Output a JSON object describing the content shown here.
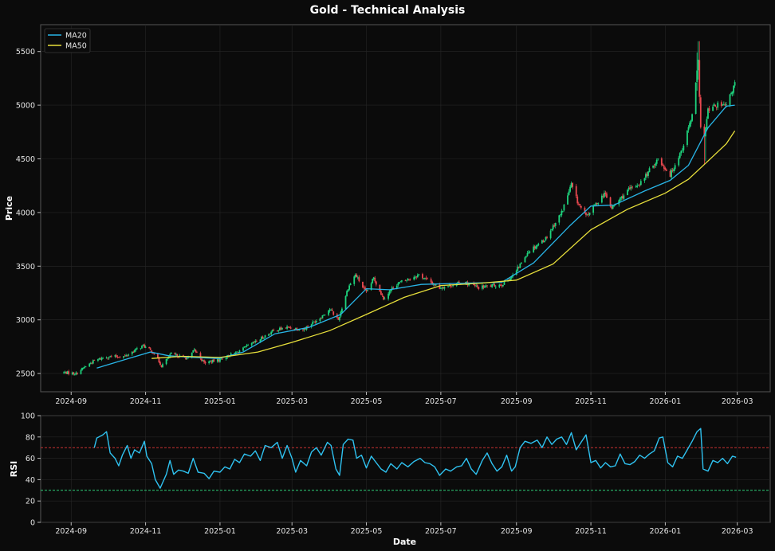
{
  "title": "Gold - Technical Analysis",
  "colors": {
    "background": "#0b0b0b",
    "panel": "#0b0b0b",
    "grid": "#262626",
    "axis": "#555555",
    "up": "#1ed37d",
    "down": "#e8484f",
    "ma20": "#28b4e6",
    "ma50": "#e7df3b",
    "rsi": "#2fc2f0",
    "overbought_line": "#c83232",
    "oversold_line": "#2ecf7a"
  },
  "chart_data": [
    {
      "type": "candlestick",
      "ylabel": "Price",
      "xlabel": "",
      "ylim": [
        2330,
        5750
      ],
      "xlim": [
        "2024-08-07",
        "2026-03-28"
      ],
      "yticks": [
        2500,
        3000,
        3500,
        4000,
        4500,
        5000,
        5500
      ],
      "xticks": [
        "2024-09",
        "2024-11",
        "2025-01",
        "2025-03",
        "2025-05",
        "2025-07",
        "2025-09",
        "2025-11",
        "2026-01",
        "2026-03"
      ],
      "grid": true,
      "legend_position": "top-left",
      "series": [
        {
          "name": "MA20",
          "color_key": "ma20"
        },
        {
          "name": "MA50",
          "color_key": "ma50"
        }
      ],
      "close_anchors": [
        [
          "2024-08-26",
          2510
        ],
        [
          "2024-09-05",
          2500
        ],
        [
          "2024-09-12",
          2560
        ],
        [
          "2024-09-20",
          2620
        ],
        [
          "2024-09-30",
          2655
        ],
        [
          "2024-10-15",
          2660
        ],
        [
          "2024-10-30",
          2760
        ],
        [
          "2024-11-08",
          2690
        ],
        [
          "2024-11-14",
          2570
        ],
        [
          "2024-11-22",
          2680
        ],
        [
          "2024-12-06",
          2640
        ],
        [
          "2024-12-11",
          2720
        ],
        [
          "2024-12-19",
          2600
        ],
        [
          "2024-12-31",
          2625
        ],
        [
          "2025-01-15",
          2700
        ],
        [
          "2025-01-31",
          2800
        ],
        [
          "2025-02-14",
          2900
        ],
        [
          "2025-02-25",
          2930
        ],
        [
          "2025-03-10",
          2910
        ],
        [
          "2025-03-24",
          3020
        ],
        [
          "2025-04-01",
          3100
        ],
        [
          "2025-04-08",
          3000
        ],
        [
          "2025-04-16",
          3300
        ],
        [
          "2025-04-22",
          3420
        ],
        [
          "2025-05-01",
          3250
        ],
        [
          "2025-05-07",
          3390
        ],
        [
          "2025-05-15",
          3200
        ],
        [
          "2025-05-25",
          3330
        ],
        [
          "2025-06-13",
          3420
        ],
        [
          "2025-06-30",
          3300
        ],
        [
          "2025-07-20",
          3350
        ],
        [
          "2025-08-01",
          3300
        ],
        [
          "2025-08-20",
          3330
        ],
        [
          "2025-08-30",
          3420
        ],
        [
          "2025-09-10",
          3630
        ],
        [
          "2025-09-25",
          3760
        ],
        [
          "2025-10-08",
          4000
        ],
        [
          "2025-10-16",
          4260
        ],
        [
          "2025-10-21",
          4100
        ],
        [
          "2025-10-28",
          3960
        ],
        [
          "2025-11-12",
          4180
        ],
        [
          "2025-11-18",
          4040
        ],
        [
          "2025-12-01",
          4200
        ],
        [
          "2025-12-12",
          4280
        ],
        [
          "2025-12-26",
          4500
        ],
        [
          "2026-01-05",
          4350
        ],
        [
          "2026-01-15",
          4600
        ],
        [
          "2026-01-23",
          4900
        ],
        [
          "2026-01-28",
          5400
        ],
        [
          "2026-01-30",
          4800
        ],
        [
          "2026-02-02",
          4700
        ],
        [
          "2026-02-05",
          4950
        ],
        [
          "2026-02-12",
          5000
        ],
        [
          "2026-02-20",
          4990
        ],
        [
          "2026-02-27",
          5200
        ]
      ],
      "ma20_anchors": [
        [
          "2024-09-22",
          2550
        ],
        [
          "2024-10-15",
          2630
        ],
        [
          "2024-11-05",
          2700
        ],
        [
          "2024-11-20",
          2665
        ],
        [
          "2024-12-10",
          2650
        ],
        [
          "2024-12-31",
          2640
        ],
        [
          "2025-01-20",
          2700
        ],
        [
          "2025-02-15",
          2870
        ],
        [
          "2025-03-15",
          2930
        ],
        [
          "2025-04-10",
          3050
        ],
        [
          "2025-05-01",
          3290
        ],
        [
          "2025-05-20",
          3280
        ],
        [
          "2025-06-15",
          3330
        ],
        [
          "2025-07-15",
          3340
        ],
        [
          "2025-08-20",
          3350
        ],
        [
          "2025-09-15",
          3530
        ],
        [
          "2025-10-15",
          3880
        ],
        [
          "2025-11-01",
          4060
        ],
        [
          "2025-11-20",
          4070
        ],
        [
          "2025-12-15",
          4200
        ],
        [
          "2026-01-05",
          4300
        ],
        [
          "2026-01-20",
          4440
        ],
        [
          "2026-02-05",
          4790
        ],
        [
          "2026-02-20",
          4990
        ],
        [
          "2026-02-27",
          5000
        ]
      ],
      "ma50_anchors": [
        [
          "2024-11-06",
          2640
        ],
        [
          "2024-12-01",
          2660
        ],
        [
          "2025-01-01",
          2650
        ],
        [
          "2025-02-01",
          2700
        ],
        [
          "2025-03-01",
          2790
        ],
        [
          "2025-04-01",
          2900
        ],
        [
          "2025-05-01",
          3050
        ],
        [
          "2025-06-01",
          3210
        ],
        [
          "2025-07-01",
          3320
        ],
        [
          "2025-08-01",
          3340
        ],
        [
          "2025-09-01",
          3370
        ],
        [
          "2025-10-01",
          3520
        ],
        [
          "2025-11-01",
          3840
        ],
        [
          "2025-12-01",
          4030
        ],
        [
          "2026-01-01",
          4180
        ],
        [
          "2026-01-20",
          4310
        ],
        [
          "2026-02-05",
          4480
        ],
        [
          "2026-02-20",
          4640
        ],
        [
          "2026-02-27",
          4760
        ]
      ]
    },
    {
      "type": "line",
      "ylabel": "RSI",
      "xlabel": "Date",
      "ylim": [
        0,
        100
      ],
      "yticks": [
        0,
        20,
        40,
        60,
        80,
        100
      ],
      "overbought": 70,
      "oversold": 30,
      "grid": true,
      "series": [
        {
          "name": "",
          "color_key": "rsi",
          "points": [
            [
              "2024-09-20",
              70
            ],
            [
              "2024-09-22",
              79
            ],
            [
              "2024-09-27",
              82
            ],
            [
              "2024-09-30",
              85
            ],
            [
              "2024-10-03",
              65
            ],
            [
              "2024-10-07",
              60
            ],
            [
              "2024-10-10",
              53
            ],
            [
              "2024-10-13",
              63
            ],
            [
              "2024-10-17",
              72
            ],
            [
              "2024-10-20",
              60
            ],
            [
              "2024-10-23",
              68
            ],
            [
              "2024-10-27",
              65
            ],
            [
              "2024-10-31",
              76
            ],
            [
              "2024-11-02",
              62
            ],
            [
              "2024-11-06",
              55
            ],
            [
              "2024-11-09",
              40
            ],
            [
              "2024-11-13",
              32
            ],
            [
              "2024-11-18",
              45
            ],
            [
              "2024-11-21",
              58
            ],
            [
              "2024-11-24",
              45
            ],
            [
              "2024-11-28",
              49
            ],
            [
              "2024-12-02",
              48
            ],
            [
              "2024-12-06",
              46
            ],
            [
              "2024-12-10",
              60
            ],
            [
              "2024-12-14",
              47
            ],
            [
              "2024-12-19",
              46
            ],
            [
              "2024-12-23",
              41
            ],
            [
              "2024-12-27",
              48
            ],
            [
              "2025-01-01",
              47
            ],
            [
              "2025-01-05",
              52
            ],
            [
              "2025-01-09",
              50
            ],
            [
              "2025-01-13",
              59
            ],
            [
              "2025-01-17",
              56
            ],
            [
              "2025-01-21",
              64
            ],
            [
              "2025-01-26",
              62
            ],
            [
              "2025-01-30",
              67
            ],
            [
              "2025-02-03",
              58
            ],
            [
              "2025-02-07",
              72
            ],
            [
              "2025-02-12",
              70
            ],
            [
              "2025-02-17",
              75
            ],
            [
              "2025-02-21",
              60
            ],
            [
              "2025-02-25",
              72
            ],
            [
              "2025-03-01",
              60
            ],
            [
              "2025-03-04",
              47
            ],
            [
              "2025-03-08",
              58
            ],
            [
              "2025-03-13",
              53
            ],
            [
              "2025-03-17",
              66
            ],
            [
              "2025-03-21",
              70
            ],
            [
              "2025-03-25",
              63
            ],
            [
              "2025-03-30",
              75
            ],
            [
              "2025-04-02",
              72
            ],
            [
              "2025-04-06",
              50
            ],
            [
              "2025-04-09",
              44
            ],
            [
              "2025-04-12",
              73
            ],
            [
              "2025-04-16",
              78
            ],
            [
              "2025-04-20",
              77
            ],
            [
              "2025-04-23",
              60
            ],
            [
              "2025-04-27",
              63
            ],
            [
              "2025-05-01",
              51
            ],
            [
              "2025-05-05",
              62
            ],
            [
              "2025-05-09",
              56
            ],
            [
              "2025-05-13",
              50
            ],
            [
              "2025-05-17",
              47
            ],
            [
              "2025-05-21",
              55
            ],
            [
              "2025-05-26",
              50
            ],
            [
              "2025-05-30",
              56
            ],
            [
              "2025-06-04",
              52
            ],
            [
              "2025-06-09",
              57
            ],
            [
              "2025-06-14",
              60
            ],
            [
              "2025-06-18",
              56
            ],
            [
              "2025-06-22",
              55
            ],
            [
              "2025-06-26",
              52
            ],
            [
              "2025-06-30",
              44
            ],
            [
              "2025-07-05",
              50
            ],
            [
              "2025-07-09",
              48
            ],
            [
              "2025-07-14",
              52
            ],
            [
              "2025-07-18",
              53
            ],
            [
              "2025-07-22",
              60
            ],
            [
              "2025-07-26",
              50
            ],
            [
              "2025-07-30",
              45
            ],
            [
              "2025-08-04",
              58
            ],
            [
              "2025-08-08",
              65
            ],
            [
              "2025-08-12",
              55
            ],
            [
              "2025-08-16",
              48
            ],
            [
              "2025-08-20",
              52
            ],
            [
              "2025-08-24",
              63
            ],
            [
              "2025-08-28",
              48
            ],
            [
              "2025-08-31",
              52
            ],
            [
              "2025-09-04",
              70
            ],
            [
              "2025-09-08",
              76
            ],
            [
              "2025-09-13",
              74
            ],
            [
              "2025-09-18",
              77
            ],
            [
              "2025-09-22",
              70
            ],
            [
              "2025-09-26",
              80
            ],
            [
              "2025-09-30",
              73
            ],
            [
              "2025-10-04",
              78
            ],
            [
              "2025-10-08",
              80
            ],
            [
              "2025-10-12",
              73
            ],
            [
              "2025-10-16",
              84
            ],
            [
              "2025-10-20",
              68
            ],
            [
              "2025-10-24",
              75
            ],
            [
              "2025-10-28",
              82
            ],
            [
              "2025-11-01",
              56
            ],
            [
              "2025-11-05",
              58
            ],
            [
              "2025-11-09",
              51
            ],
            [
              "2025-11-13",
              56
            ],
            [
              "2025-11-17",
              52
            ],
            [
              "2025-11-21",
              53
            ],
            [
              "2025-11-25",
              64
            ],
            [
              "2025-11-29",
              55
            ],
            [
              "2025-12-03",
              54
            ],
            [
              "2025-12-07",
              57
            ],
            [
              "2025-12-11",
              63
            ],
            [
              "2025-12-15",
              60
            ],
            [
              "2025-12-19",
              64
            ],
            [
              "2025-12-23",
              67
            ],
            [
              "2025-12-27",
              79
            ],
            [
              "2025-12-30",
              80
            ],
            [
              "2026-01-03",
              56
            ],
            [
              "2026-01-07",
              52
            ],
            [
              "2026-01-11",
              62
            ],
            [
              "2026-01-15",
              60
            ],
            [
              "2026-01-19",
              68
            ],
            [
              "2026-01-23",
              76
            ],
            [
              "2026-01-27",
              85
            ],
            [
              "2026-01-30",
              88
            ],
            [
              "2026-02-01",
              50
            ],
            [
              "2026-02-05",
              48
            ],
            [
              "2026-02-09",
              58
            ],
            [
              "2026-02-13",
              56
            ],
            [
              "2026-02-17",
              60
            ],
            [
              "2026-02-21",
              55
            ],
            [
              "2026-02-25",
              62
            ],
            [
              "2026-02-28",
              61
            ]
          ]
        }
      ]
    }
  ]
}
